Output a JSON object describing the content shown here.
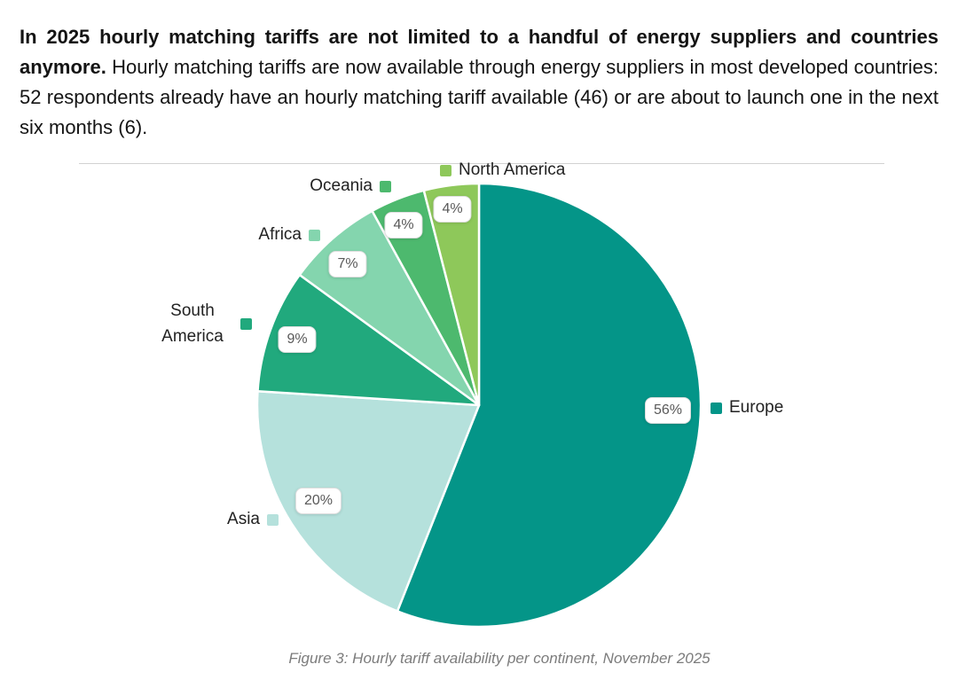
{
  "intro": {
    "bold": "In 2025 hourly matching tariffs are not limited to a handful of energy suppliers and countries anymore.",
    "rest": "Hourly matching tariffs are now available through energy suppliers in most developed countries: 52 respondents already have an hourly matching tariff available (46) or are about to launch one in the next six months (6)."
  },
  "chart_data": {
    "type": "pie",
    "title": "Hourly tariff availability per continent, November 2025",
    "unit": "%",
    "start_angle_deg": 0,
    "direction": "clockwise",
    "categories": [
      "Europe",
      "Asia",
      "South America",
      "Africa",
      "Oceania",
      "North America"
    ],
    "values": [
      56,
      20,
      9,
      7,
      4,
      4
    ],
    "slices": [
      {
        "label": "Europe",
        "value": 56,
        "pct_label": "56%",
        "color": "#049588"
      },
      {
        "label": "Asia",
        "value": 20,
        "pct_label": "20%",
        "color": "#b5e1dc"
      },
      {
        "label": "South America",
        "value": 9,
        "pct_label": "9%",
        "color": "#21a97d"
      },
      {
        "label": "Africa",
        "value": 7,
        "pct_label": "7%",
        "color": "#84d5ae"
      },
      {
        "label": "Oceania",
        "value": 4,
        "pct_label": "4%",
        "color": "#4db96e"
      },
      {
        "label": "North America",
        "value": 4,
        "pct_label": "4%",
        "color": "#8ec85a"
      }
    ]
  },
  "caption": "Figure 3: Hourly tariff availability per continent, November 2025"
}
